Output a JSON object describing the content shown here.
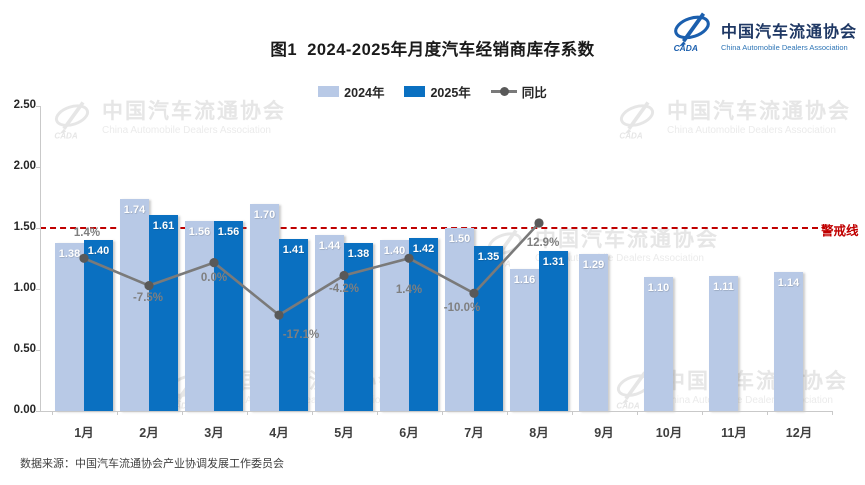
{
  "header": {
    "title": "图1  2024-2025年月度汽车经销商库存系数",
    "logo": {
      "cn": "中国汽车流通协会",
      "en": "China Automobile Dealers Association",
      "glyph": "cada-swoosh-logo",
      "acronym": "CADA"
    }
  },
  "legend": [
    {
      "label": "2024年",
      "type": "swatch",
      "color": "#b8c9e6"
    },
    {
      "label": "2025年",
      "type": "swatch",
      "color": "#0a70c1"
    },
    {
      "label": "同比",
      "type": "line-marker",
      "color": "#7a7a7a"
    }
  ],
  "chart_data": {
    "type": "bar",
    "categories": [
      "1月",
      "2月",
      "3月",
      "4月",
      "5月",
      "6月",
      "7月",
      "8月",
      "9月",
      "10月",
      "11月",
      "12月"
    ],
    "series": [
      {
        "name": "2024年",
        "type": "bar",
        "color": "#b8c9e6",
        "values": [
          1.38,
          1.74,
          1.56,
          1.7,
          1.44,
          1.4,
          1.5,
          1.16,
          1.29,
          1.1,
          1.11,
          1.14
        ]
      },
      {
        "name": "2025年",
        "type": "bar",
        "color": "#0a70c1",
        "values": [
          1.4,
          1.61,
          1.56,
          1.41,
          1.38,
          1.42,
          1.35,
          1.31,
          null,
          null,
          null,
          null
        ]
      },
      {
        "name": "同比",
        "type": "line",
        "unit": "%",
        "color": "#7a7a7a",
        "marker_color": "#595959",
        "values": [
          1.4,
          -7.5,
          0.0,
          -17.1,
          -4.2,
          1.4,
          -10.0,
          12.9,
          null,
          null,
          null,
          null
        ]
      }
    ],
    "y_axis": {
      "min": 0,
      "max": 2.5,
      "step": 0.5,
      "tick_labels": [
        "0.00",
        "0.50",
        "1.00",
        "1.50",
        "2.00",
        "2.50"
      ]
    },
    "threshold_line": {
      "value": 1.5,
      "label": "警戒线",
      "color": "#c00000",
      "style": "dashed"
    },
    "legend_position": "top",
    "grid": false
  },
  "watermark": {
    "cn": "中国汽车流通协会",
    "en": "China Automobile Dealers Association"
  },
  "footer": {
    "source": "数据来源：中国汽车流通协会产业协调发展工作委员会"
  }
}
